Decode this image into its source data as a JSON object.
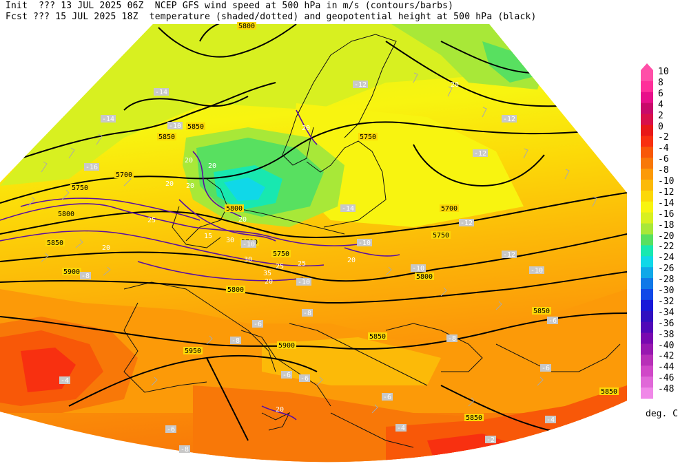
{
  "header": {
    "line1": "Init  ??? 13 JUL 2025 06Z  NCEP GFS wind speed at 500 hPa in m/s (contours/barbs)",
    "line2": "Fcst ??? 15 JUL 2025 18Z  temperature (shaded/dotted) and geopotential height at 500 hPa (black)"
  },
  "colorbar": {
    "units": "deg. C",
    "levels": [
      "10",
      "8",
      "6",
      "4",
      "2",
      "0",
      "-2",
      "-4",
      "-6",
      "-8",
      "-10",
      "-12",
      "-14",
      "-16",
      "-18",
      "-20",
      "-22",
      "-24",
      "-26",
      "-28",
      "-30",
      "-32",
      "-34",
      "-36",
      "-38",
      "-40",
      "-42",
      "-44",
      "-46",
      "-48"
    ],
    "colors": [
      "#ff4fa8",
      "#ff2f9a",
      "#e8108a",
      "#c80a6a",
      "#d8104a",
      "#e81818",
      "#f83010",
      "#f85808",
      "#f87808",
      "#fc9a08",
      "#fcba08",
      "#fcd808",
      "#f8f410",
      "#d8f020",
      "#a8e838",
      "#58e060",
      "#18e8b0",
      "#10d8e8",
      "#10a8e8",
      "#1078e8",
      "#1048e8",
      "#1818d8",
      "#3010c0",
      "#5008b8",
      "#7808b0",
      "#9818b0",
      "#b830b8",
      "#d048c8",
      "#e068d8",
      "#f088e8"
    ]
  },
  "map_labels": {
    "height_contours": [
      "5800",
      "5850",
      "5850",
      "5750",
      "5700",
      "5750",
      "5800",
      "5850",
      "5900",
      "5750",
      "5700",
      "5800",
      "5700",
      "5750",
      "5800",
      "5800",
      "5850",
      "5900",
      "5850",
      "5950",
      "5850",
      "5850"
    ],
    "temperature": [
      "-14",
      "-14",
      "-10",
      "-12",
      "-12",
      "-12",
      "-10",
      "-12",
      "-14",
      "-12",
      "-16",
      "-10",
      "-10",
      "-10",
      "-10",
      "-8",
      "-8",
      "-8",
      "-6",
      "-6",
      "-8",
      "-6",
      "-6",
      "-4",
      "-4",
      "-6",
      "-2",
      "-8",
      "-6",
      "-4",
      "-6"
    ],
    "wind_speed": [
      "20",
      "20",
      "25",
      "20",
      "20",
      "25",
      "30",
      "20",
      "25",
      "20",
      "20",
      "30",
      "20",
      "15",
      "20",
      "35",
      "20",
      "20"
    ]
  }
}
